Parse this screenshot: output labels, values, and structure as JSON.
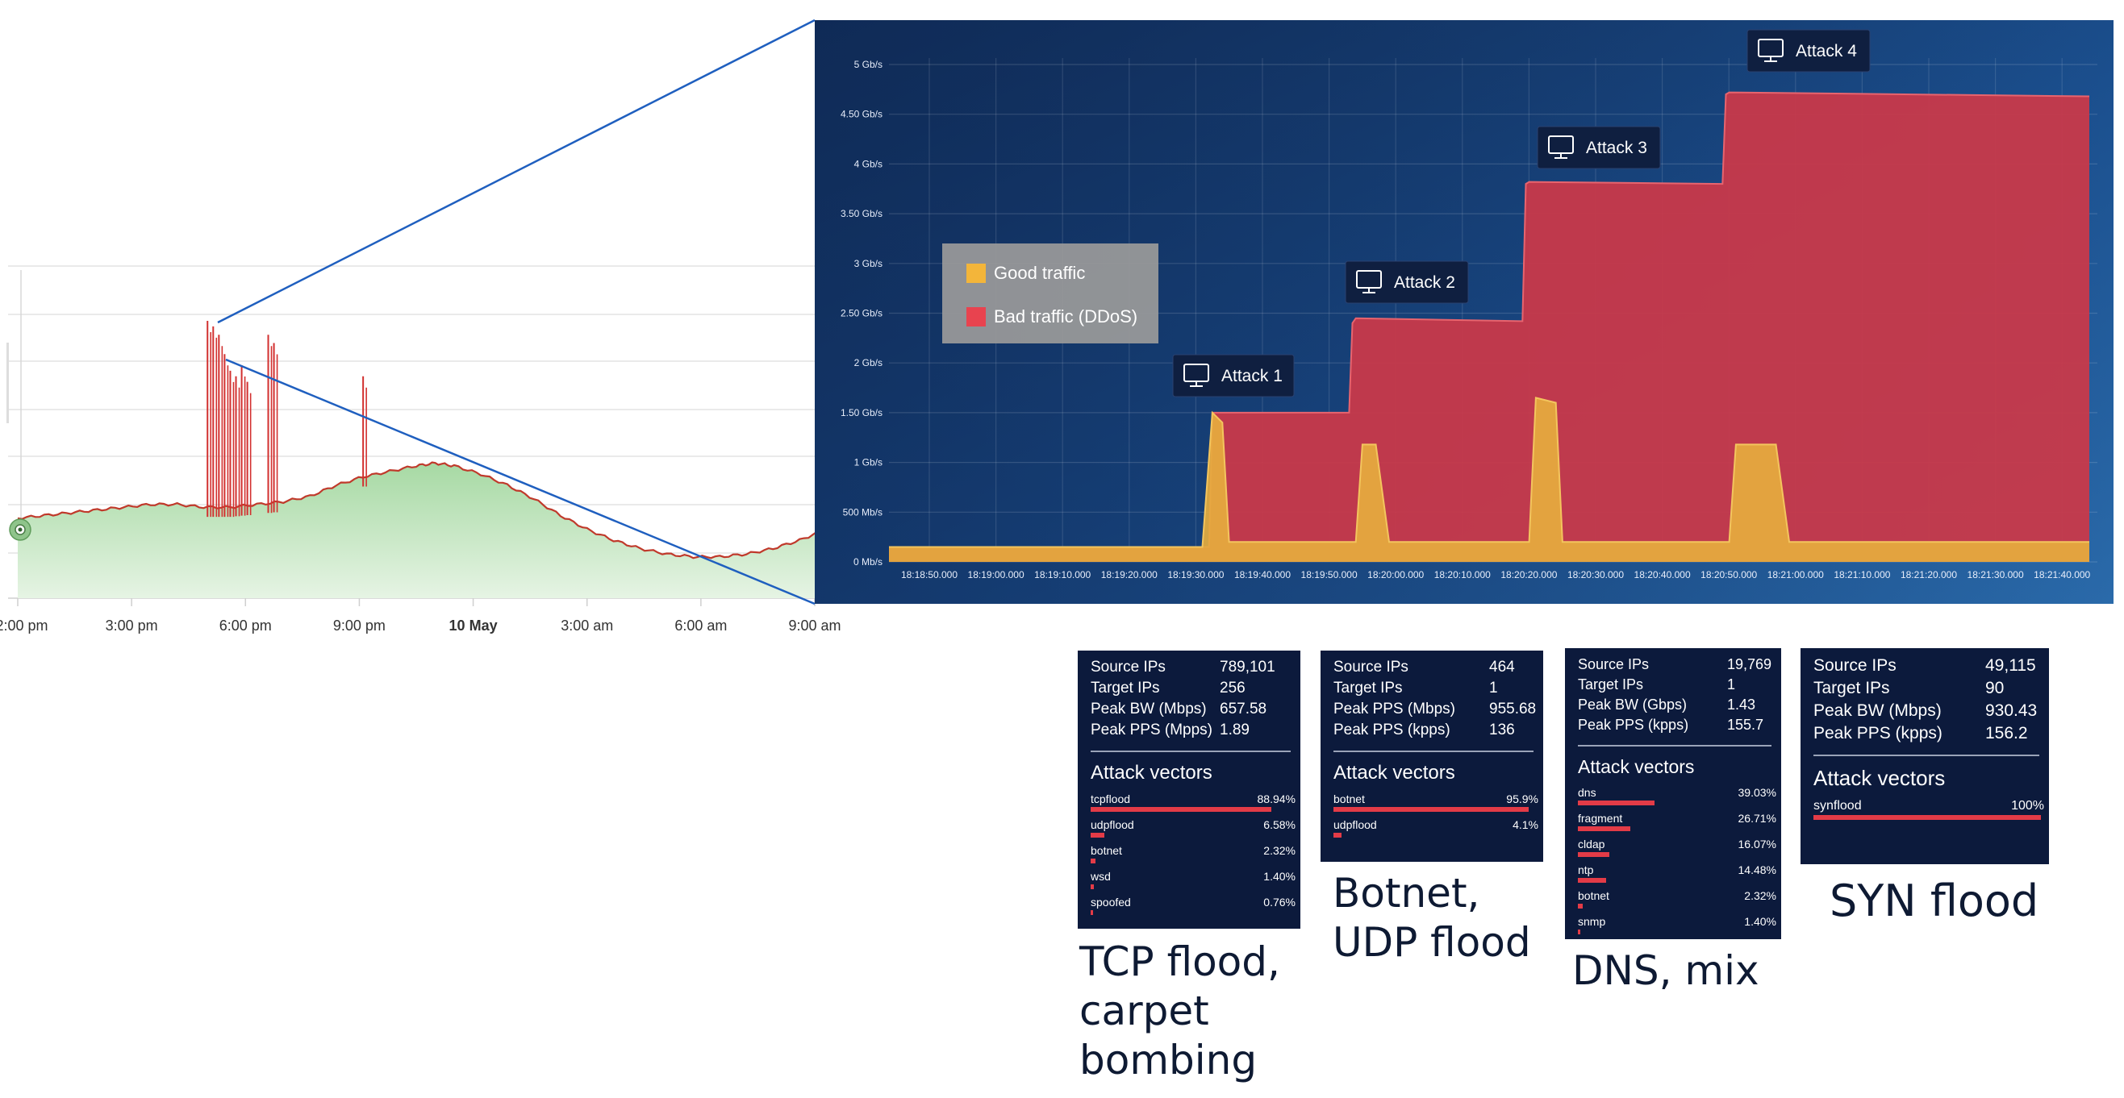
{
  "colors": {
    "good_traffic": "#f3b53a",
    "bad_traffic": "#e8434f",
    "overview_fill": "#b9e2b7",
    "overview_line": "#c0392b",
    "zoom_line": "#1f5fbf",
    "panel_bg": "#0c1a3c",
    "stat_bar": "#e33b47"
  },
  "chart_data": [
    {
      "type": "area",
      "x_ticks": [
        "12:00 pm",
        "3:00 pm",
        "6:00 pm",
        "9:00 pm",
        "10 May",
        "3:00 am",
        "6:00 am",
        "9:00 am"
      ],
      "x_ticks_bold": [
        "10 May"
      ],
      "grid": true,
      "series": [
        {
          "values": [
            0.29,
            0.3,
            0.31,
            0.32,
            0.33,
            0.34,
            0.34,
            0.33,
            0.33,
            0.34,
            0.35,
            0.37,
            0.41,
            0.44,
            0.46,
            0.48,
            0.49,
            0.48,
            0.45,
            0.41,
            0.36,
            0.3,
            0.25,
            0.21,
            0.18,
            0.16,
            0.15,
            0.15,
            0.16,
            0.18,
            0.21,
            0.25
          ],
          "x_hours": [
            0,
            0.7,
            1.4,
            2.1,
            2.8,
            3.5,
            4.2,
            4.9,
            5.6,
            6.3,
            7.0,
            7.7,
            8.4,
            9.1,
            9.8,
            10.5,
            11.0,
            11.5,
            12.2,
            12.9,
            13.6,
            14.3,
            15.0,
            15.7,
            16.4,
            17.1,
            17.8,
            18.5,
            19.2,
            19.9,
            20.6,
            21.3
          ]
        }
      ],
      "spikes": [
        {
          "x_hours": 5.0,
          "value": 1.0
        },
        {
          "x_hours": 5.15,
          "value": 0.98
        },
        {
          "x_hours": 5.3,
          "value": 0.95
        },
        {
          "x_hours": 5.45,
          "value": 0.88
        },
        {
          "x_hours": 5.6,
          "value": 0.82
        },
        {
          "x_hours": 5.75,
          "value": 0.8
        },
        {
          "x_hours": 5.9,
          "value": 0.84
        },
        {
          "x_hours": 6.05,
          "value": 0.78
        },
        {
          "x_hours": 6.6,
          "value": 0.95
        },
        {
          "x_hours": 6.75,
          "value": 0.92
        },
        {
          "x_hours": 9.1,
          "value": 0.8
        }
      ]
    },
    {
      "type": "area",
      "y_ticks": [
        "0 Mb/s",
        "500 Mb/s",
        "1 Gb/s",
        "1.50 Gb/s",
        "2 Gb/s",
        "2.50 Gb/s",
        "3 Gb/s",
        "3.50 Gb/s",
        "4 Gb/s",
        "4.50 Gb/s",
        "5 Gb/s"
      ],
      "ylim": [
        0,
        5
      ],
      "x_ticks": [
        "18:18:50.000",
        "18:19:00.000",
        "18:19:10.000",
        "18:19:20.000",
        "18:19:30.000",
        "18:19:40.000",
        "18:19:50.000",
        "18:20:00.000",
        "18:20:10.000",
        "18:20:20.000",
        "18:20:30.000",
        "18:20:40.000",
        "18:20:50.000",
        "18:21:00.000",
        "18:21:10.000",
        "18:21:20.000",
        "18:21:30.000",
        "18:21:40.000"
      ],
      "x_range_s": [
        0,
        180
      ],
      "legend": [
        {
          "label": "Good traffic",
          "color": "#f3b53a"
        },
        {
          "label": "Bad traffic (DDoS)",
          "color": "#e8434f"
        }
      ],
      "legend_placement": "left",
      "series": [
        {
          "name": "Bad traffic (DDoS)",
          "x_s": [
            0,
            48,
            48.5,
            50,
            69,
            69.5,
            70,
            95,
            95.5,
            96,
            125,
            125.5,
            126,
            180
          ],
          "values": [
            0.15,
            0.15,
            1.5,
            1.5,
            1.5,
            2.4,
            2.45,
            2.42,
            3.8,
            3.82,
            3.8,
            4.7,
            4.72,
            4.68
          ]
        },
        {
          "name": "Good traffic",
          "x_s": [
            0,
            47,
            48.5,
            50,
            51,
            70,
            71,
            73,
            75,
            96,
            97,
            100,
            101,
            126,
            127,
            133,
            135,
            180
          ],
          "values": [
            0.15,
            0.15,
            1.5,
            1.4,
            0.2,
            0.2,
            1.18,
            1.18,
            0.2,
            0.2,
            1.65,
            1.6,
            0.2,
            0.2,
            1.18,
            1.18,
            0.2,
            0.2
          ]
        }
      ],
      "annotations": [
        {
          "label": "Attack 1",
          "x_s": 48,
          "value": 1.5
        },
        {
          "label": "Attack 2",
          "x_s": 69,
          "value": 2.4
        },
        {
          "label": "Attack 3",
          "x_s": 95,
          "value": 3.8
        },
        {
          "label": "Attack 4",
          "x_s": 125,
          "value": 4.7
        }
      ]
    }
  ],
  "attacks": [
    {
      "stats": [
        {
          "label": "Source IPs",
          "value": "789,101"
        },
        {
          "label": "Target IPs",
          "value": "256"
        },
        {
          "label": "Peak BW (Mbps)",
          "value": "657.58"
        },
        {
          "label": "Peak PPS (Mpps)",
          "value": "1.89"
        }
      ],
      "vectors_title": "Attack vectors",
      "vectors": [
        {
          "name": "tcpflood",
          "pct": "88.94%",
          "fraction": 0.8894
        },
        {
          "name": "udpflood",
          "pct": "6.58%",
          "fraction": 0.0658
        },
        {
          "name": "botnet",
          "pct": "2.32%",
          "fraction": 0.0232
        },
        {
          "name": "wsd",
          "pct": "1.40%",
          "fraction": 0.014
        },
        {
          "name": "spoofed",
          "pct": "0.76%",
          "fraction": 0.0076
        }
      ],
      "caption": [
        "TCP flood,",
        "carpet",
        "bombing"
      ]
    },
    {
      "stats": [
        {
          "label": "Source IPs",
          "value": "464"
        },
        {
          "label": "Target IPs",
          "value": "1"
        },
        {
          "label": "Peak PPS (Mbps)",
          "value": "955.68"
        },
        {
          "label": "Peak PPS (kpps)",
          "value": "136"
        }
      ],
      "vectors_title": "Attack vectors",
      "vectors": [
        {
          "name": "botnet",
          "pct": "95.9%",
          "fraction": 0.959
        },
        {
          "name": "udpflood",
          "pct": "4.1%",
          "fraction": 0.041
        }
      ],
      "caption": [
        "Botnet,",
        "UDP flood"
      ]
    },
    {
      "stats": [
        {
          "label": "Source IPs",
          "value": "19,769"
        },
        {
          "label": "Target IPs",
          "value": "1"
        },
        {
          "label": "Peak BW (Gbps)",
          "value": "1.43"
        },
        {
          "label": "Peak PPS (kpps)",
          "value": "155.7"
        }
      ],
      "vectors_title": "Attack vectors",
      "vectors": [
        {
          "name": "dns",
          "pct": "39.03%",
          "fraction": 0.3903
        },
        {
          "name": "fragment",
          "pct": "26.71%",
          "fraction": 0.2671
        },
        {
          "name": "cldap",
          "pct": "16.07%",
          "fraction": 0.1607
        },
        {
          "name": "ntp",
          "pct": "14.48%",
          "fraction": 0.1448
        },
        {
          "name": "botnet",
          "pct": "2.32%",
          "fraction": 0.0232
        },
        {
          "name": "snmp",
          "pct": "1.40%",
          "fraction": 0.014
        }
      ],
      "caption": [
        "DNS, mix"
      ]
    },
    {
      "stats": [
        {
          "label": "Source IPs",
          "value": "49,115"
        },
        {
          "label": "Target IPs",
          "value": "90"
        },
        {
          "label": "Peak BW (Mbps)",
          "value": "930.43"
        },
        {
          "label": "Peak PPS (kpps)",
          "value": "156.2"
        }
      ],
      "vectors_title": "Attack vectors",
      "vectors": [
        {
          "name": "synflood",
          "pct": "100%",
          "fraction": 1.0
        }
      ],
      "caption": [
        "SYN flood"
      ]
    }
  ]
}
